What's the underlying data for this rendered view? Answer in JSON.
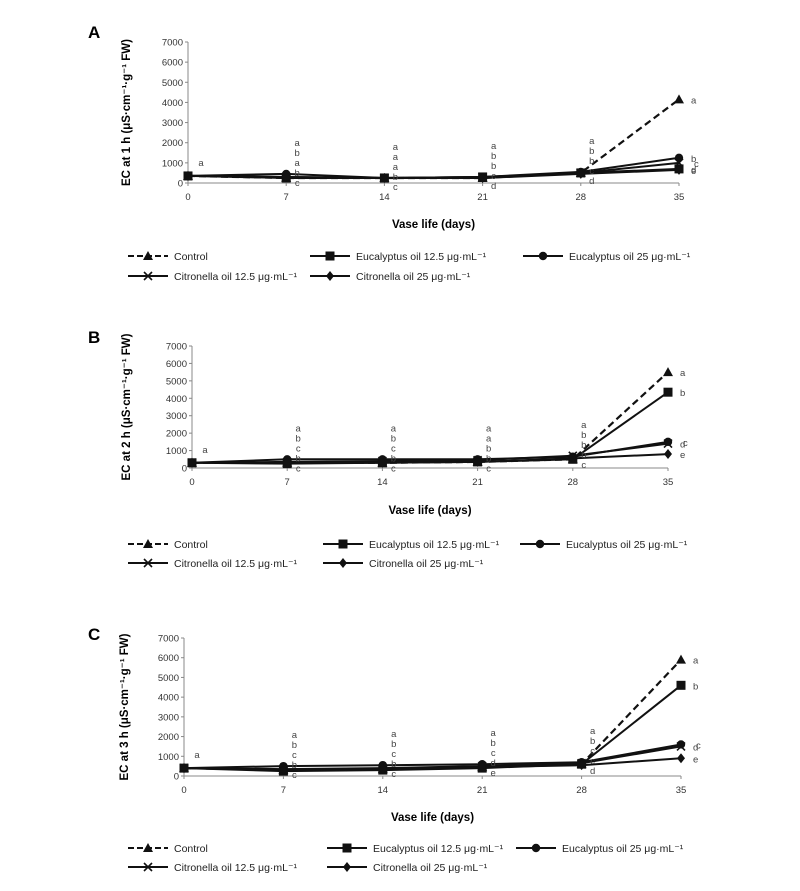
{
  "shared": {
    "x_label": "Vase life (days)",
    "x": [
      0,
      7,
      14,
      21,
      28,
      35
    ],
    "legend": [
      "Control",
      "Eucalyptus oil 12.5 μg·mL⁻¹",
      "Eucalyptus oil 25 μg·mL⁻¹",
      "Citronella oil 12.5 μg·mL⁻¹",
      "Citronella oil 25 μg·mL⁻¹"
    ]
  },
  "chart_data": [
    {
      "type": "line",
      "panel": "A",
      "ylabel": "EC at 1 h (μS·cm⁻¹·g⁻¹ FW)",
      "xlabel": "Vase life (days)",
      "ylim": [
        0,
        7000
      ],
      "y_ticks": [
        0,
        1000,
        2000,
        3000,
        4000,
        5000,
        6000,
        7000
      ],
      "x": [
        0,
        7,
        14,
        21,
        28,
        35
      ],
      "series": [
        {
          "name": "Control",
          "marker": "triangle",
          "dash": true,
          "values": [
            350,
            250,
            250,
            250,
            500,
            4150
          ]
        },
        {
          "name": "Eucalyptus oil 12.5 μg·mL⁻¹",
          "marker": "square",
          "dash": false,
          "values": [
            350,
            250,
            250,
            300,
            500,
            700
          ]
        },
        {
          "name": "Eucalyptus oil 25 μg·mL⁻¹",
          "marker": "circle",
          "dash": false,
          "values": [
            350,
            450,
            250,
            300,
            550,
            1250
          ]
        },
        {
          "name": "Citronella oil 12.5 μg·mL⁻¹",
          "marker": "x",
          "dash": false,
          "values": [
            350,
            300,
            250,
            300,
            500,
            1000
          ]
        },
        {
          "name": "Citronella oil 25 μg·mL⁻¹",
          "marker": "diamond",
          "dash": false,
          "values": [
            350,
            300,
            250,
            250,
            450,
            650
          ]
        }
      ],
      "letters": [
        {
          "x": 0,
          "labels": [
            "a"
          ]
        },
        {
          "x": 7,
          "labels": [
            "a",
            "b",
            "a",
            "b",
            "c"
          ]
        },
        {
          "x": 14,
          "labels": [
            "a",
            "a",
            "a",
            "b",
            "c"
          ]
        },
        {
          "x": 21,
          "labels": [
            "a",
            "b",
            "b",
            "c",
            "d"
          ]
        },
        {
          "x": 28,
          "labels": [
            "a",
            "b",
            "b",
            "c",
            "d"
          ]
        },
        {
          "x": 35,
          "labels": [
            "a",
            "b",
            "c",
            "d",
            "e"
          ]
        }
      ]
    },
    {
      "type": "line",
      "panel": "B",
      "ylabel": "EC at 2 h (μS·cm⁻¹·g⁻¹ FW)",
      "xlabel": "Vase life (days)",
      "ylim": [
        0,
        7000
      ],
      "y_ticks": [
        0,
        1000,
        2000,
        3000,
        4000,
        5000,
        6000,
        7000
      ],
      "x": [
        0,
        7,
        14,
        21,
        28,
        35
      ],
      "series": [
        {
          "name": "Control",
          "marker": "triangle",
          "dash": true,
          "values": [
            300,
            300,
            300,
            350,
            500,
            5500
          ]
        },
        {
          "name": "Eucalyptus oil 12.5 μg·mL⁻¹",
          "marker": "square",
          "dash": false,
          "values": [
            300,
            250,
            300,
            350,
            500,
            4350
          ]
        },
        {
          "name": "Eucalyptus oil 25 μg·mL⁻¹",
          "marker": "circle",
          "dash": false,
          "values": [
            300,
            500,
            500,
            500,
            650,
            1500
          ]
        },
        {
          "name": "Citronella oil 12.5 μg·mL⁻¹",
          "marker": "x",
          "dash": false,
          "values": [
            300,
            350,
            400,
            450,
            700,
            1400
          ]
        },
        {
          "name": "Citronella oil 25 μg·mL⁻¹",
          "marker": "diamond",
          "dash": false,
          "values": [
            300,
            300,
            300,
            350,
            550,
            800
          ]
        }
      ],
      "letters": [
        {
          "x": 0,
          "labels": [
            "a"
          ]
        },
        {
          "x": 7,
          "labels": [
            "a",
            "b",
            "c",
            "b",
            "c"
          ]
        },
        {
          "x": 14,
          "labels": [
            "a",
            "b",
            "c",
            "b",
            "c"
          ]
        },
        {
          "x": 21,
          "labels": [
            "a",
            "a",
            "b",
            "b",
            "c"
          ]
        },
        {
          "x": 28,
          "labels": [
            "a",
            "b",
            "b",
            "b",
            "c"
          ]
        },
        {
          "x": 35,
          "labels": [
            "a",
            "b",
            "c",
            "d",
            "e"
          ]
        }
      ]
    },
    {
      "type": "line",
      "panel": "C",
      "ylabel": "EC at 3 h (μS·cm⁻¹·g⁻¹ FW)",
      "xlabel": "Vase life (days)",
      "ylim": [
        0,
        7000
      ],
      "y_ticks": [
        0,
        1000,
        2000,
        3000,
        4000,
        5000,
        6000,
        7000
      ],
      "x": [
        0,
        7,
        14,
        21,
        28,
        35
      ],
      "series": [
        {
          "name": "Control",
          "marker": "triangle",
          "dash": true,
          "values": [
            400,
            300,
            350,
            450,
            600,
            5900
          ]
        },
        {
          "name": "Eucalyptus oil 12.5 μg·mL⁻¹",
          "marker": "square",
          "dash": false,
          "values": [
            400,
            250,
            300,
            400,
            600,
            4600
          ]
        },
        {
          "name": "Eucalyptus oil 25 μg·mL⁻¹",
          "marker": "circle",
          "dash": false,
          "values": [
            400,
            500,
            550,
            600,
            700,
            1600
          ]
        },
        {
          "name": "Citronella oil 12.5 μg·mL⁻¹",
          "marker": "x",
          "dash": false,
          "values": [
            400,
            350,
            400,
            500,
            650,
            1500
          ]
        },
        {
          "name": "Citronella oil 25 μg·mL⁻¹",
          "marker": "diamond",
          "dash": false,
          "values": [
            400,
            300,
            350,
            450,
            550,
            900
          ]
        }
      ],
      "letters": [
        {
          "x": 0,
          "labels": [
            "a"
          ]
        },
        {
          "x": 7,
          "labels": [
            "a",
            "b",
            "c",
            "b",
            "c"
          ]
        },
        {
          "x": 14,
          "labels": [
            "a",
            "b",
            "c",
            "b",
            "c"
          ]
        },
        {
          "x": 21,
          "labels": [
            "a",
            "b",
            "c",
            "d",
            "e"
          ]
        },
        {
          "x": 28,
          "labels": [
            "a",
            "b",
            "c",
            "c",
            "d"
          ]
        },
        {
          "x": 35,
          "labels": [
            "a",
            "b",
            "c",
            "d",
            "e"
          ]
        }
      ]
    }
  ]
}
